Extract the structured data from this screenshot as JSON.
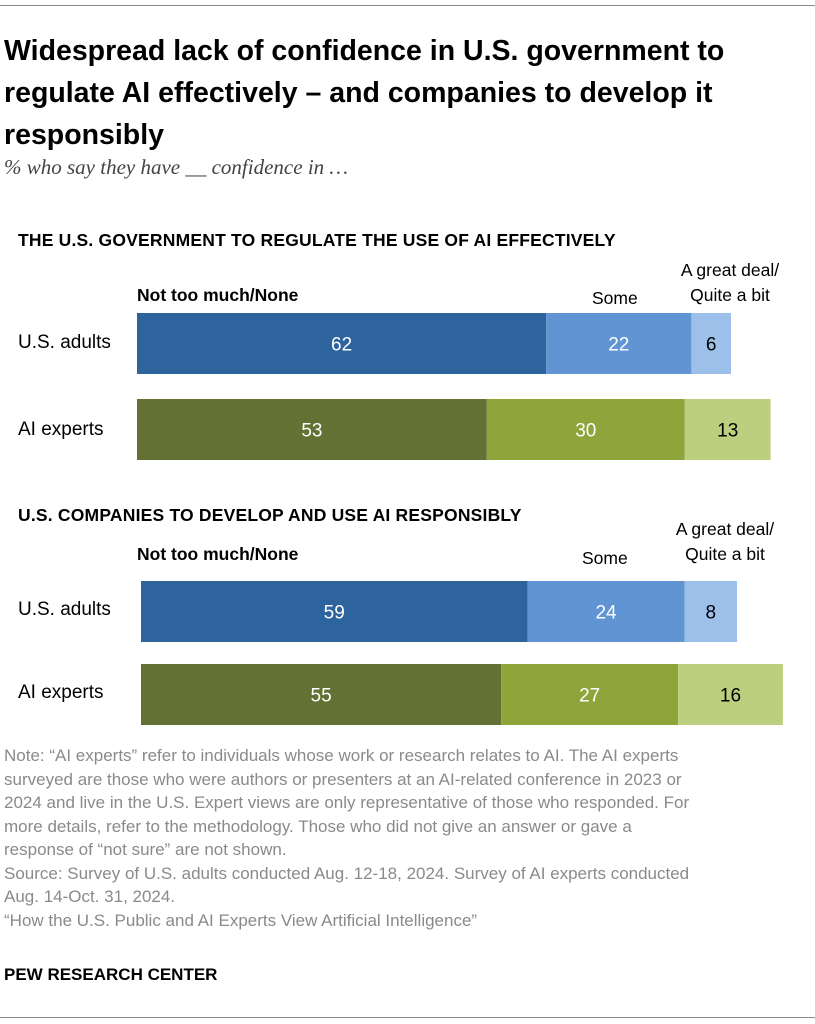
{
  "title_lines": [
    "Widespread lack of confidence in U.S. government to",
    "regulate AI effectively – and companies to develop it",
    "responsibly"
  ],
  "subtitle": "% who say they have __ confidence in …",
  "legend": {
    "not_too_much": "Not too much/None",
    "some": "Some",
    "great_deal_line1": "A great deal/",
    "great_deal_line2": "Quite a bit"
  },
  "colors": {
    "adults": [
      "#2e649e",
      "#6094d2",
      "#9cc0ea"
    ],
    "experts": [
      "#637134",
      "#8fa43a",
      "#bccf7e"
    ],
    "label_dark": "#ffffff",
    "label_light": "#000000"
  },
  "chart_data": [
    {
      "type": "bar",
      "orientation": "horizontal-stacked",
      "title": "THE U.S. GOVERNMENT TO REGULATE THE USE OF AI EFFECTIVELY",
      "categories": [
        "U.S. adults",
        "AI experts"
      ],
      "series": [
        {
          "name": "Not too much/None",
          "values": [
            62,
            53
          ]
        },
        {
          "name": "Some",
          "values": [
            22,
            30
          ]
        },
        {
          "name": "A great deal/Quite a bit",
          "values": [
            6,
            13
          ]
        }
      ]
    },
    {
      "type": "bar",
      "orientation": "horizontal-stacked",
      "title": "U.S. COMPANIES TO DEVELOP AND USE AI RESPONSIBLY",
      "categories": [
        "U.S. adults",
        "AI experts"
      ],
      "series": [
        {
          "name": "Not too much/None",
          "values": [
            59,
            55
          ]
        },
        {
          "name": "Some",
          "values": [
            24,
            27
          ]
        },
        {
          "name": "A great deal/Quite a bit",
          "values": [
            8,
            16
          ]
        }
      ]
    }
  ],
  "note_lines": [
    "Note: “AI experts” refer to individuals whose work or research relates to AI. The AI experts",
    "surveyed are those who were authors or presenters at an AI-related conference in 2023 or",
    "2024 and live in the U.S. Expert views are only representative of those who responded. For",
    "more details, refer to the methodology. Those who did not give an answer or gave a",
    "response of “not sure” are not shown.",
    "Source: Survey of U.S. adults conducted Aug. 12-18, 2024. Survey of AI experts conducted",
    "Aug. 14-Oct. 31, 2024.",
    "“How the U.S. Public and AI Experts View Artificial Intelligence”"
  ],
  "brand": "PEW RESEARCH CENTER"
}
